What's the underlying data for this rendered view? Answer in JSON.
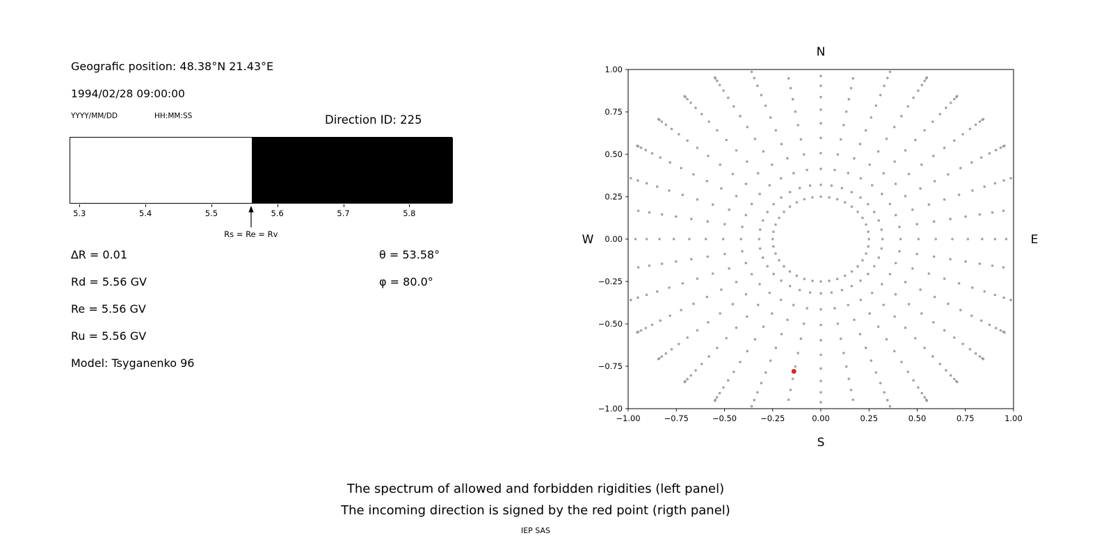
{
  "left_panel": {
    "geo_position": "Geografic position: 48.38°N 21.43°E",
    "datetime": "1994/02/28 09:00:00",
    "date_format_label": "YYYY/MM/DD",
    "time_format_label": "HH:MM:SS",
    "direction_id": "Direction ID: 225",
    "arrow_label": "Rs = Re = Rv",
    "params_left": [
      "∆R = 0.01",
      "Rd = 5.56 GV",
      "Re = 5.56 GV",
      "Ru = 5.56 GV",
      "Model: Tsyganenko 96"
    ],
    "params_right": [
      "θ = 53.58°",
      "φ = 80.0°"
    ]
  },
  "caption": {
    "line1": "The spectrum of allowed and forbidden rigidities (left panel)",
    "line2": "The incoming direction is signed by the red point (rigth panel)",
    "credit": "IEP SAS"
  },
  "chart_data": [
    {
      "id": "rigidity-spectrum",
      "type": "bar",
      "description": "Spectrum of allowed (white) and forbidden (black) rigidities",
      "x_range": [
        5.285,
        5.865
      ],
      "x_tick_values": [
        5.3,
        5.4,
        5.5,
        5.6,
        5.7,
        5.8
      ],
      "x_tick_labels": [
        "5.3",
        "5.4",
        "5.5",
        "5.6",
        "5.7",
        "5.8"
      ],
      "segments": [
        {
          "label": "allowed",
          "from": 5.285,
          "to": 5.56,
          "color": "#ffffff"
        },
        {
          "label": "forbidden",
          "from": 5.56,
          "to": 5.865,
          "color": "#000000"
        }
      ],
      "arrow_marker": {
        "value": 5.56,
        "label": "Rs = Re = Rv"
      }
    },
    {
      "id": "incoming-direction",
      "type": "scatter",
      "description": "Incoming direction map; gray dots form radial spokes every 10 degrees plus an inner ring; red point marks the incoming direction",
      "xlim": [
        -1,
        1
      ],
      "ylim": [
        -1,
        1
      ],
      "x_ticks": [
        -1,
        -0.75,
        -0.5,
        -0.25,
        0,
        0.25,
        0.5,
        0.75,
        1
      ],
      "y_ticks": [
        -1,
        -0.75,
        -0.5,
        -0.25,
        0,
        0.25,
        0.5,
        0.75,
        1
      ],
      "compass_labels": {
        "top": "N",
        "bottom": "S",
        "left": "W",
        "right": "E"
      },
      "gray_dots": {
        "pattern": "radial-spokes",
        "spoke_count": 36,
        "angle_step_deg": 10,
        "r_start": 0.32,
        "r_end": 1.1,
        "points_per_spoke": 14,
        "inner_ring_radius": 0.25,
        "inner_ring_points": 36,
        "color": "#999999",
        "dot_radius": 1.8
      },
      "red_point": {
        "x": -0.14,
        "y": -0.78,
        "color": "#d62728",
        "dot_radius": 3.5
      }
    }
  ]
}
